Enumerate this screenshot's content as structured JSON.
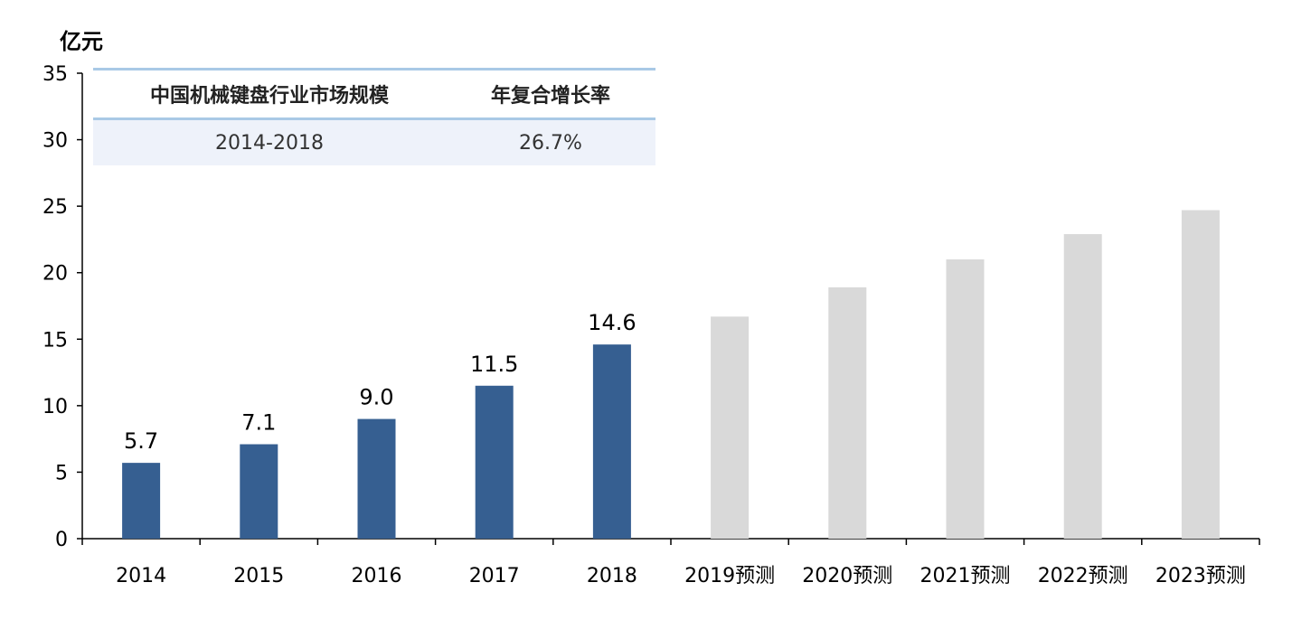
{
  "chart_data": {
    "type": "bar",
    "unit_label": "亿元",
    "categories": [
      "2014",
      "2015",
      "2016",
      "2017",
      "2018",
      "2019预测",
      "2020预测",
      "2021预测",
      "2022预测",
      "2023预测"
    ],
    "values": [
      5.7,
      7.1,
      9.0,
      11.5,
      14.6,
      16.7,
      18.9,
      21.0,
      22.9,
      24.7
    ],
    "data_labels": [
      "5.7",
      "7.1",
      "9.0",
      "11.5",
      "14.6",
      "",
      "",
      "",
      "",
      ""
    ],
    "ylim": [
      0,
      35
    ],
    "yticks": [
      0,
      5,
      10,
      15,
      20,
      25,
      30,
      35
    ],
    "colors": {
      "actual": "#365f91",
      "forecast": "#d9d9d9",
      "axis": "#000000",
      "table_rule": "#a9c9e6",
      "table_fill": "#eef2fa"
    },
    "grid": false,
    "summary_table": {
      "headers": [
        "中国机械键盘行业市场规模",
        "年复合增长率"
      ],
      "rows": [
        [
          "2014-2018",
          "26.7%"
        ]
      ]
    }
  }
}
